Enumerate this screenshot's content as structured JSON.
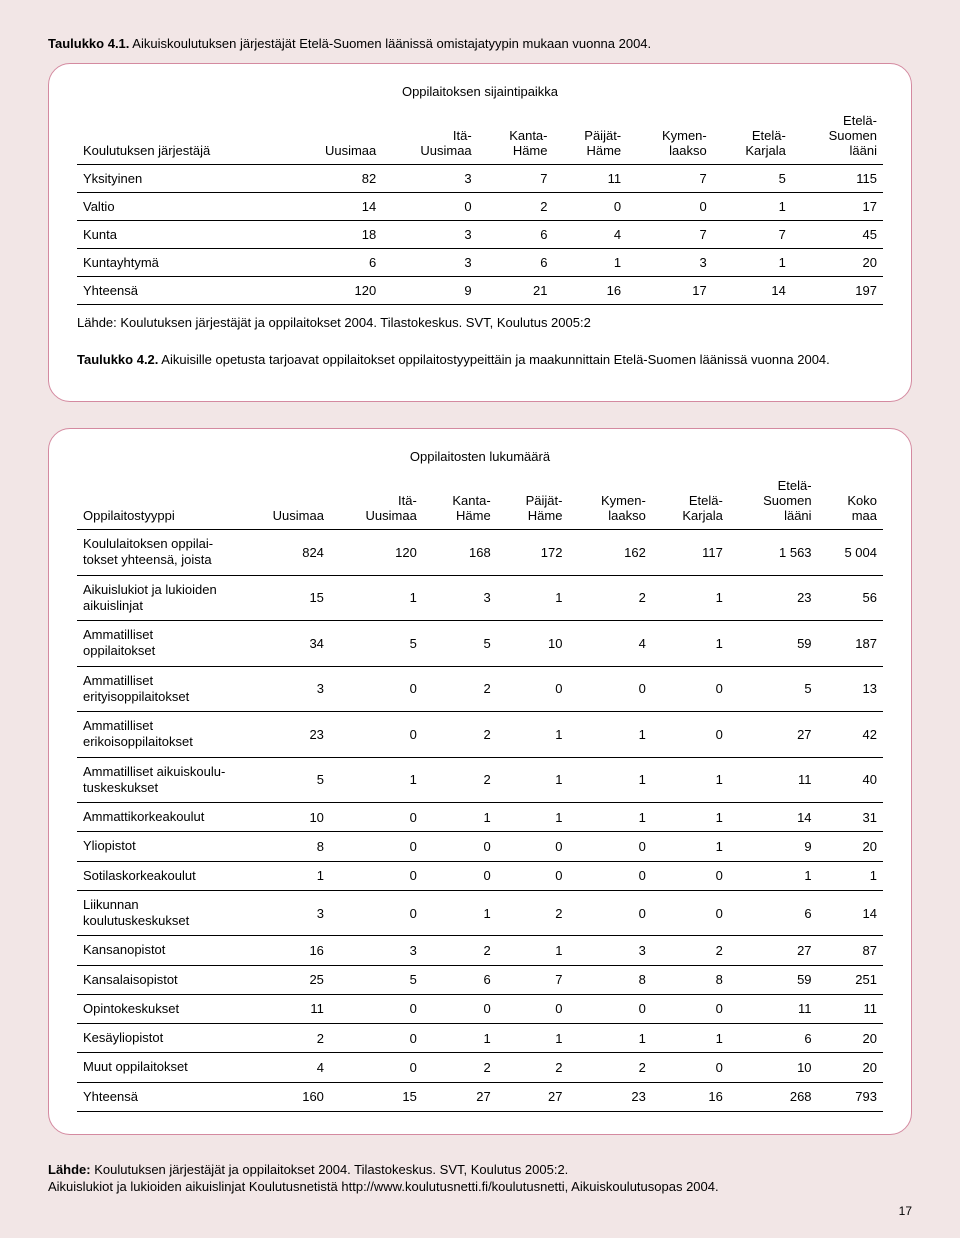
{
  "table1": {
    "title_bold": "Taulukko 4.1.",
    "title_rest": " Aikuiskoulutuksen järjestäjät Etelä-Suomen läänissä omistajatyypin mukaan vuonna 2004.",
    "subhead": "Oppilaitoksen sijaintipaikka",
    "headers": [
      "Koulutuksen järjestäjä",
      "Uusimaa",
      "Itä-\nUusimaa",
      "Kanta-\nHäme",
      "Päijät-\nHäme",
      "Kymen-\nlaakso",
      "Etelä-\nKarjala",
      "Etelä-\nSuomen\nlääni"
    ],
    "rows": [
      [
        "Yksityinen",
        "82",
        "3",
        "7",
        "11",
        "7",
        "5",
        "115"
      ],
      [
        "Valtio",
        "14",
        "0",
        "2",
        "0",
        "0",
        "1",
        "17"
      ],
      [
        "Kunta",
        "18",
        "3",
        "6",
        "4",
        "7",
        "7",
        "45"
      ],
      [
        "Kuntayhtymä",
        "6",
        "3",
        "6",
        "1",
        "3",
        "1",
        "20"
      ],
      [
        "Yhteensä",
        "120",
        "9",
        "21",
        "16",
        "17",
        "14",
        "197"
      ]
    ],
    "source": "Lähde: Koulutuksen järjestäjät ja oppilaitokset 2004. Tilastokeskus. SVT, Koulutus 2005:2"
  },
  "table2": {
    "title_bold": "Taulukko 4.2.",
    "title_rest": " Aikuisille opetusta tarjoavat oppilaitokset oppilaitostyypeittäin ja maakunnittain Etelä-Suomen läänissä vuonna 2004.",
    "subhead": "Oppilaitosten lukumäärä",
    "headers": [
      "Oppilaitostyyppi",
      "Uusimaa",
      "Itä-\nUusimaa",
      "Kanta-\nHäme",
      "Päijät-\nHäme",
      "Kymen-\nlaakso",
      "Etelä-\nKarjala",
      "Etelä-\nSuomen\nlääni",
      "Koko\nmaa"
    ],
    "rows": [
      [
        "Koululaitoksen oppilai-\ntokset yhteensä, joista",
        "824",
        "120",
        "168",
        "172",
        "162",
        "117",
        "1 563",
        "5 004"
      ],
      [
        "Aikuislukiot ja lukioiden\naikuislinjat",
        "15",
        "1",
        "3",
        "1",
        "2",
        "1",
        "23",
        "56"
      ],
      [
        "Ammatilliset\noppilaitokset",
        "34",
        "5",
        "5",
        "10",
        "4",
        "1",
        "59",
        "187"
      ],
      [
        "Ammatilliset\nerityisoppilaitokset",
        "3",
        "0",
        "2",
        "0",
        "0",
        "0",
        "5",
        "13"
      ],
      [
        "Ammatilliset\nerikoisoppilaitokset",
        "23",
        "0",
        "2",
        "1",
        "1",
        "0",
        "27",
        "42"
      ],
      [
        "Ammatilliset aikuiskoulu-\ntuskeskukset",
        "5",
        "1",
        "2",
        "1",
        "1",
        "1",
        "11",
        "40"
      ],
      [
        "Ammattikorkeakoulut",
        "10",
        "0",
        "1",
        "1",
        "1",
        "1",
        "14",
        "31"
      ],
      [
        "Yliopistot",
        "8",
        "0",
        "0",
        "0",
        "0",
        "1",
        "9",
        "20"
      ],
      [
        "Sotilaskorkeakoulut",
        "1",
        "0",
        "0",
        "0",
        "0",
        "0",
        "1",
        "1"
      ],
      [
        "Liikunnan\nkoulutuskeskukset",
        "3",
        "0",
        "1",
        "2",
        "0",
        "0",
        "6",
        "14"
      ],
      [
        "Kansanopistot",
        "16",
        "3",
        "2",
        "1",
        "3",
        "2",
        "27",
        "87"
      ],
      [
        "Kansalaisopistot",
        "25",
        "5",
        "6",
        "7",
        "8",
        "8",
        "59",
        "251"
      ],
      [
        "Opintokeskukset",
        "11",
        "0",
        "0",
        "0",
        "0",
        "0",
        "11",
        "11"
      ],
      [
        "Kesäyliopistot",
        "2",
        "0",
        "1",
        "1",
        "1",
        "1",
        "6",
        "20"
      ],
      [
        "Muut oppilaitokset",
        "4",
        "0",
        "2",
        "2",
        "2",
        "0",
        "10",
        "20"
      ],
      [
        "Yhteensä",
        "160",
        "15",
        "27",
        "27",
        "23",
        "16",
        "268",
        "793"
      ]
    ]
  },
  "footer": {
    "label": "Lähde:",
    "line1": " Koulutuksen järjestäjät ja oppilaitokset 2004. Tilastokeskus. SVT, Koulutus 2005:2.",
    "line2": "Aikuislukiot ja lukioiden aikuislinjat Koulutusnetistä http://www.koulutusnetti.fi/koulutusnetti, Aikuiskoulutusopas 2004."
  },
  "pagenum": "17"
}
